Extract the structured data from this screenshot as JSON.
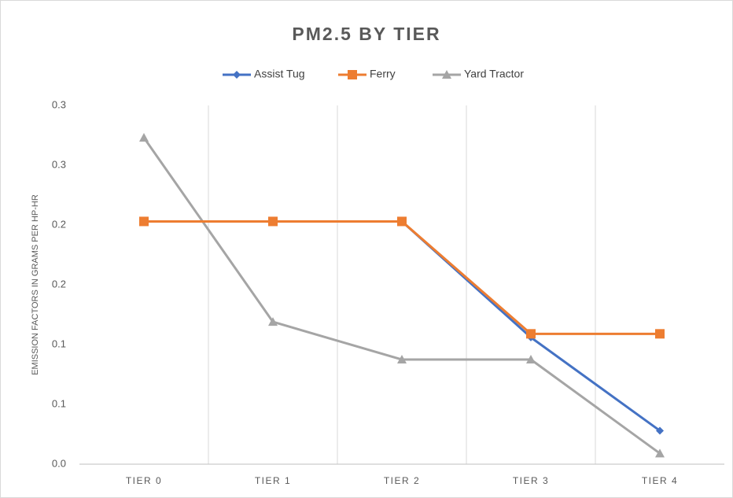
{
  "chart_data": {
    "type": "line",
    "title": "PM2.5 BY TIER",
    "y_label": "EMISSION FACTORS IN GRAMS PER HP-HR",
    "categories": [
      "TIER 0",
      "TIER 1",
      "TIER 2",
      "TIER 3",
      "TIER 4"
    ],
    "series": [
      {
        "name": "Assist Tug",
        "color": "#4472c4",
        "marker": "diamond",
        "values": [
          0.203,
          0.203,
          0.203,
          0.106,
          0.028
        ]
      },
      {
        "name": "Ferry",
        "color": "#ed7d31",
        "marker": "square",
        "values": [
          0.203,
          0.203,
          0.203,
          0.109,
          0.109
        ]
      },
      {
        "name": "Yard Tractor",
        "color": "#a5a5a5",
        "marker": "triangle",
        "values": [
          0.273,
          0.119,
          0.0875,
          0.0875,
          0.009
        ]
      }
    ],
    "ylim": [
      0,
      0.3
    ],
    "yticks": [
      {
        "value": 0,
        "label": "0.0"
      },
      {
        "value": 0.05,
        "label": "0.1"
      },
      0.1,
      {
        "value": 0.15,
        "label": "0.2"
      },
      0.2,
      {
        "value": 0.25,
        "label": "0.3"
      },
      0.3
    ],
    "legend": "top"
  }
}
